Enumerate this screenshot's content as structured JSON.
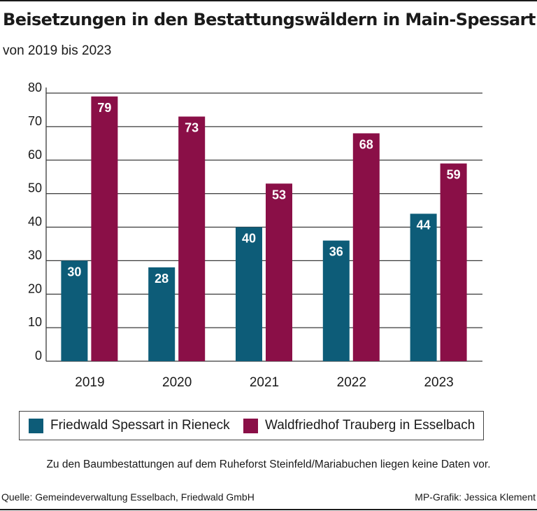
{
  "chart_data": {
    "type": "bar",
    "title": "Beisetzungen in den Bestattungswäldern in Main-Spessart",
    "subtitle": "von 2019 bis 2023",
    "categories": [
      "2019",
      "2020",
      "2021",
      "2022",
      "2023"
    ],
    "series": [
      {
        "name": "Friedwald Spessart in Rieneck",
        "values": [
          30,
          28,
          40,
          36,
          44
        ],
        "color": "#0d5c78"
      },
      {
        "name": "Waldfriedhof Trauberg in Esselbach",
        "values": [
          79,
          73,
          53,
          68,
          59
        ],
        "color": "#8a0f47"
      }
    ],
    "ylim": [
      0,
      80
    ],
    "yticks": [
      0,
      10,
      20,
      30,
      40,
      50,
      60,
      70,
      80
    ],
    "xlabel": "",
    "ylabel": "",
    "grid": true,
    "legend": "bottom",
    "note": "Zu den Baumbestattungen auf dem Ruheforst Steinfeld/Mariabuchen liegen keine Daten vor.",
    "source": "Quelle: Gemeindeverwaltung Esselbach, Friedwald GmbH",
    "credit": "MP-Grafik: Jessica Klement"
  }
}
